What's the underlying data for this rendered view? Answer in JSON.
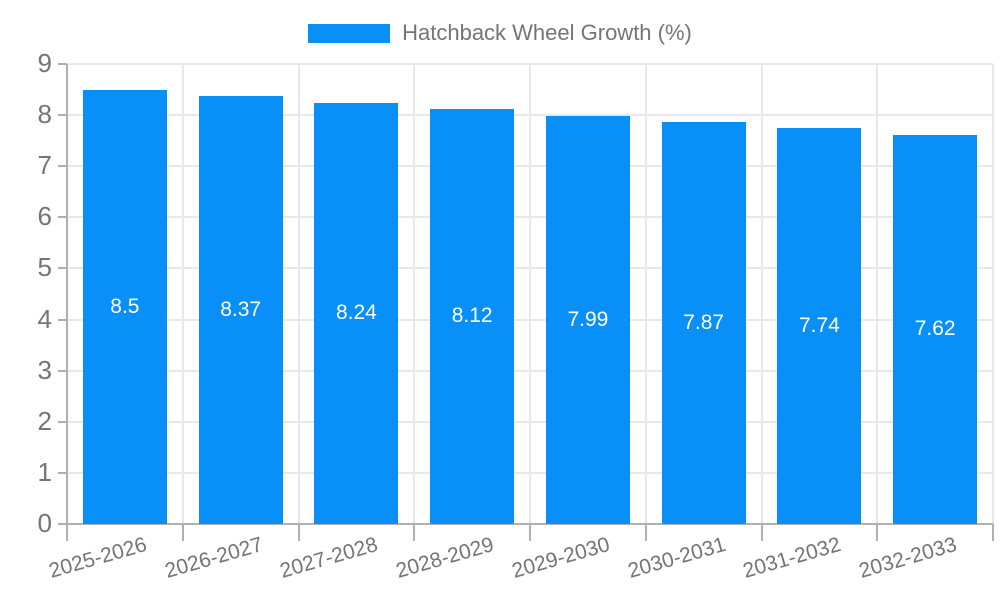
{
  "legend": {
    "label": "Hatchback Wheel Growth (%)"
  },
  "chart_data": {
    "type": "bar",
    "title": "",
    "xlabel": "",
    "ylabel": "",
    "categories": [
      "2025-2026",
      "2026-2027",
      "2027-2028",
      "2028-2029",
      "2029-2030",
      "2030-2031",
      "2031-2032",
      "2032-2033"
    ],
    "values": [
      8.5,
      8.37,
      8.24,
      8.12,
      7.99,
      7.87,
      7.74,
      7.62
    ],
    "value_labels": [
      "8.5",
      "8.37",
      "8.24",
      "8.12",
      "7.99",
      "7.87",
      "7.74",
      "7.62"
    ],
    "series_name": "Hatchback Wheel Growth (%)",
    "ylim": [
      0,
      9
    ],
    "y_ticks": [
      0,
      1,
      2,
      3,
      4,
      5,
      6,
      7,
      8,
      9
    ],
    "grid": true,
    "legend_position": "top-center",
    "colors": {
      "bar": "#0890f8",
      "grid": "#e8e8e8",
      "axis": "#b0b0b0",
      "tick_label": "#757575",
      "value_label": "#ffffff"
    }
  }
}
